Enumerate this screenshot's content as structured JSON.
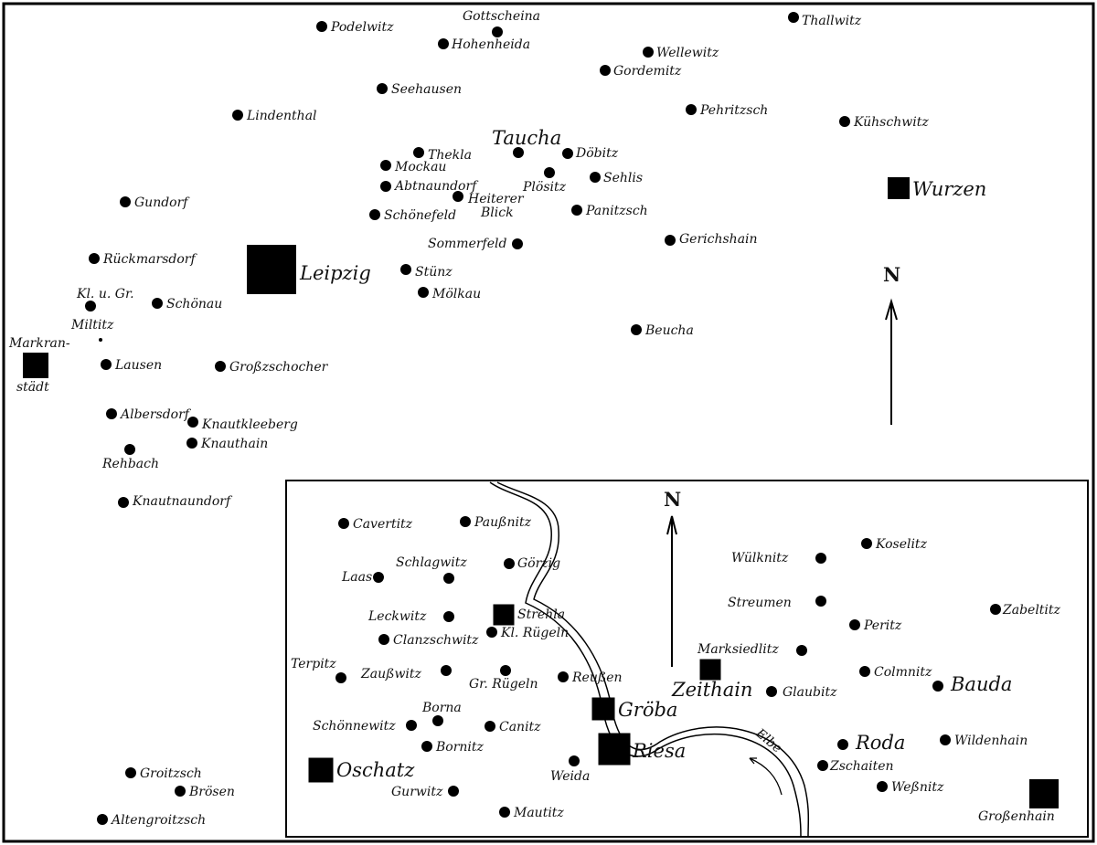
{
  "top_map": {
    "north_label": "N",
    "places": [
      {
        "name": "Podelwitz",
        "type": "village"
      },
      {
        "name": "Gottscheina",
        "type": "village"
      },
      {
        "name": "Hohenheida",
        "type": "village"
      },
      {
        "name": "Wellewitz",
        "type": "village"
      },
      {
        "name": "Gordemitz",
        "type": "village"
      },
      {
        "name": "Thallwitz",
        "type": "village"
      },
      {
        "name": "Seehausen",
        "type": "village"
      },
      {
        "name": "Lindenthal",
        "type": "village"
      },
      {
        "name": "Pehritzsch",
        "type": "village"
      },
      {
        "name": "Kühschwitz",
        "type": "village"
      },
      {
        "name": "Taucha",
        "type": "village"
      },
      {
        "name": "Thekla",
        "type": "village"
      },
      {
        "name": "Döbitz",
        "type": "village"
      },
      {
        "name": "Mockau",
        "type": "village"
      },
      {
        "name": "Plösitz",
        "type": "village"
      },
      {
        "name": "Sehlis",
        "type": "village"
      },
      {
        "name": "Abtnaundorf",
        "type": "village"
      },
      {
        "name": "Heiterer",
        "type": "village"
      },
      {
        "name": "Panitzsch",
        "type": "village"
      },
      {
        "name": "Schönefeld",
        "type": "village"
      },
      {
        "name": "Gerichshain",
        "type": "village"
      },
      {
        "name": "Sommerfeld",
        "type": "village"
      },
      {
        "name": "Gundorf",
        "type": "village"
      },
      {
        "name": "Rückmarsdorf",
        "type": "village"
      },
      {
        "name": "Leipzig",
        "type": "town"
      },
      {
        "name": "Stünz",
        "type": "village"
      },
      {
        "name": "Mölkau",
        "type": "village"
      },
      {
        "name": "Kl. u. Gr.",
        "type": "village"
      },
      {
        "name": "Schönau",
        "type": "village"
      },
      {
        "name": "Beucha",
        "type": "village"
      },
      {
        "name": "Markran-",
        "type": "town"
      },
      {
        "name": "Lausen",
        "type": "village"
      },
      {
        "name": "Großzschocher",
        "type": "village"
      },
      {
        "name": "Albersdorf",
        "type": "village"
      },
      {
        "name": "Knautkleeberg",
        "type": "village"
      },
      {
        "name": "Knauthain",
        "type": "village"
      },
      {
        "name": "Rehbach",
        "type": "village"
      },
      {
        "name": "Knautnaundorf",
        "type": "village"
      },
      {
        "name": "Wurzen",
        "type": "town"
      },
      {
        "name": "Groitzsch",
        "type": "village"
      },
      {
        "name": "Brösen",
        "type": "village"
      },
      {
        "name": "Altengroitzsch",
        "type": "village"
      }
    ],
    "extra_labels": {
      "heiterer_2": "Blick",
      "miltitz": "Miltitz",
      "markranstaedt_2": "städt"
    }
  },
  "inset_map": {
    "north_label": "N",
    "river_label": "Elbe",
    "places": [
      {
        "name": "Cavertitz",
        "type": "village"
      },
      {
        "name": "Paußnitz",
        "type": "village"
      },
      {
        "name": "Schlagwitz",
        "type": "village"
      },
      {
        "name": "Görzig",
        "type": "village"
      },
      {
        "name": "Laas",
        "type": "village"
      },
      {
        "name": "Leckwitz",
        "type": "village"
      },
      {
        "name": "Strehla",
        "type": "town"
      },
      {
        "name": "Clanzschwitz",
        "type": "village"
      },
      {
        "name": "Kl. Rügeln",
        "type": "village"
      },
      {
        "name": "Terpitz",
        "type": "village"
      },
      {
        "name": "Zaußwitz",
        "type": "village"
      },
      {
        "name": "Gr. Rügeln",
        "type": "village"
      },
      {
        "name": "Reußen",
        "type": "village"
      },
      {
        "name": "Borna",
        "type": "village"
      },
      {
        "name": "Schönnewitz",
        "type": "village"
      },
      {
        "name": "Canitz",
        "type": "village"
      },
      {
        "name": "Bornitz",
        "type": "village"
      },
      {
        "name": "Oschatz",
        "type": "town"
      },
      {
        "name": "Weida",
        "type": "village"
      },
      {
        "name": "Gröba",
        "type": "town"
      },
      {
        "name": "Riesa",
        "type": "town"
      },
      {
        "name": "Gurwitz",
        "type": "village"
      },
      {
        "name": "Mautitz",
        "type": "village"
      },
      {
        "name": "Zeithain",
        "type": "town"
      },
      {
        "name": "Glaubitz",
        "type": "village"
      },
      {
        "name": "Marksiedlitz",
        "type": "village"
      },
      {
        "name": "Wülknitz",
        "type": "village"
      },
      {
        "name": "Koselitz",
        "type": "village"
      },
      {
        "name": "Streumen",
        "type": "village"
      },
      {
        "name": "Peritz",
        "type": "village"
      },
      {
        "name": "Zabeltitz",
        "type": "village"
      },
      {
        "name": "Colmnitz",
        "type": "village"
      },
      {
        "name": "Bauda",
        "type": "village"
      },
      {
        "name": "Roda",
        "type": "village"
      },
      {
        "name": "Wildenhain",
        "type": "village"
      },
      {
        "name": "Zschaiten",
        "type": "village"
      },
      {
        "name": "Weßnitz",
        "type": "village"
      },
      {
        "name": "Großenhain",
        "type": "town"
      }
    ]
  }
}
